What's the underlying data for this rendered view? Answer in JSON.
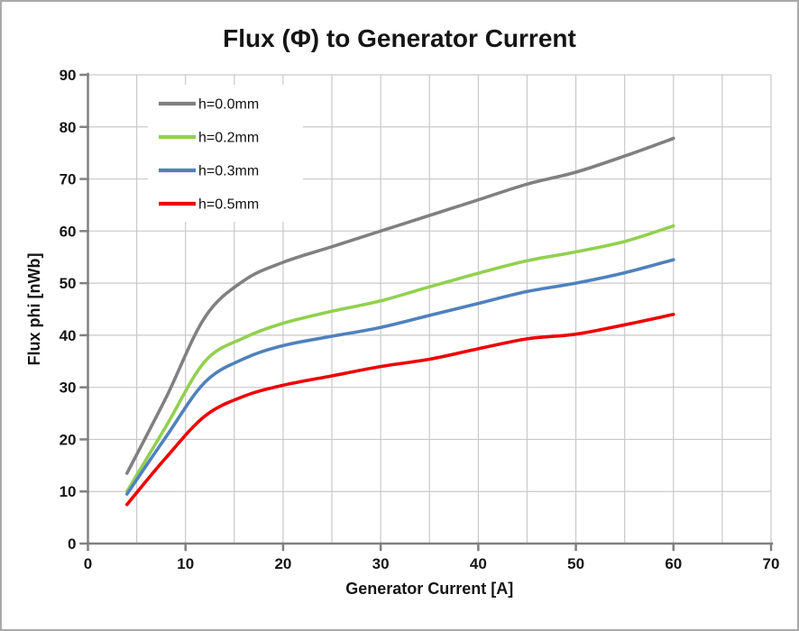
{
  "title": "Flux (Φ) to Generator Current",
  "colors": {
    "axis": "#808080",
    "grid": "#c9c9c9",
    "text": "#151515",
    "plot_background": "#ffffff",
    "legend_background": "#ffffff",
    "frame_border": "#a9a9a9"
  },
  "chart_data": {
    "type": "line",
    "title": "Flux (Φ) to Generator Current",
    "xlabel": "Generator Current [A]",
    "ylabel": "Flux phi [nWb]",
    "xlim": [
      0,
      70
    ],
    "ylim": [
      0,
      90
    ],
    "x_ticks": [
      0,
      10,
      20,
      30,
      40,
      50,
      60,
      70
    ],
    "y_ticks": [
      0,
      10,
      20,
      30,
      40,
      50,
      60,
      70,
      80,
      90
    ],
    "x_gridline_step": 5,
    "y_gridline_step": 10,
    "grid": true,
    "legend_position": "top-left-inside",
    "x": [
      4,
      8,
      12,
      16,
      20,
      25,
      30,
      35,
      40,
      45,
      50,
      55,
      60
    ],
    "series": [
      {
        "name": "h=0.0mm",
        "color": "#808080",
        "values": [
          13.5,
          28.0,
          43.5,
          50.5,
          54.0,
          57.0,
          60.0,
          63.0,
          66.0,
          69.0,
          71.3,
          74.4,
          77.8
        ]
      },
      {
        "name": "h=0.2mm",
        "color": "#92D050",
        "values": [
          10.0,
          22.5,
          35.0,
          39.5,
          42.3,
          44.6,
          46.6,
          49.3,
          51.9,
          54.3,
          56.0,
          58.0,
          61.0
        ]
      },
      {
        "name": "h=0.3mm",
        "color": "#4F81BD",
        "values": [
          9.5,
          20.5,
          31.0,
          35.5,
          38.0,
          39.8,
          41.5,
          43.8,
          46.1,
          48.4,
          50.0,
          52.0,
          54.5
        ]
      },
      {
        "name": "h=0.5mm",
        "color": "#EE0000",
        "values": [
          7.5,
          16.5,
          24.5,
          28.3,
          30.4,
          32.2,
          34.0,
          35.4,
          37.4,
          39.3,
          40.2,
          42.0,
          44.0
        ]
      }
    ]
  }
}
